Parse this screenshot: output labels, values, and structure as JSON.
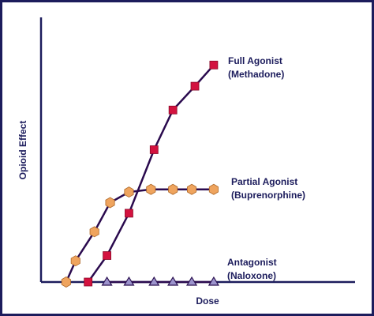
{
  "chart_data": {
    "type": "line",
    "y_label": "Opioid Effect",
    "x_label": "Dose",
    "xlim": [
      0,
      100
    ],
    "ylim": [
      0,
      100
    ],
    "series": [
      {
        "name": "Full Agonist",
        "drug": "(Methadone)",
        "color": "#d3123f",
        "marker": "square",
        "x": [
          15,
          21,
          28,
          36,
          42,
          49,
          55
        ],
        "values": [
          0,
          10,
          26,
          50,
          65,
          74,
          82
        ]
      },
      {
        "name": "Partial Agonist",
        "drug": "(Buprenorphine)",
        "color": "#efa45e",
        "marker": "hexagon",
        "x": [
          8,
          11,
          17,
          22,
          28,
          35,
          42,
          48,
          55
        ],
        "values": [
          0,
          8,
          19,
          30,
          34,
          35,
          35,
          35,
          35
        ]
      },
      {
        "name": "Antagonist",
        "drug": "(Naloxone)",
        "color": "#9c93cc",
        "marker": "triangle",
        "x": [
          21,
          28,
          36,
          42,
          48,
          55
        ],
        "values": [
          0,
          0,
          0,
          0,
          0,
          0
        ]
      }
    ]
  }
}
